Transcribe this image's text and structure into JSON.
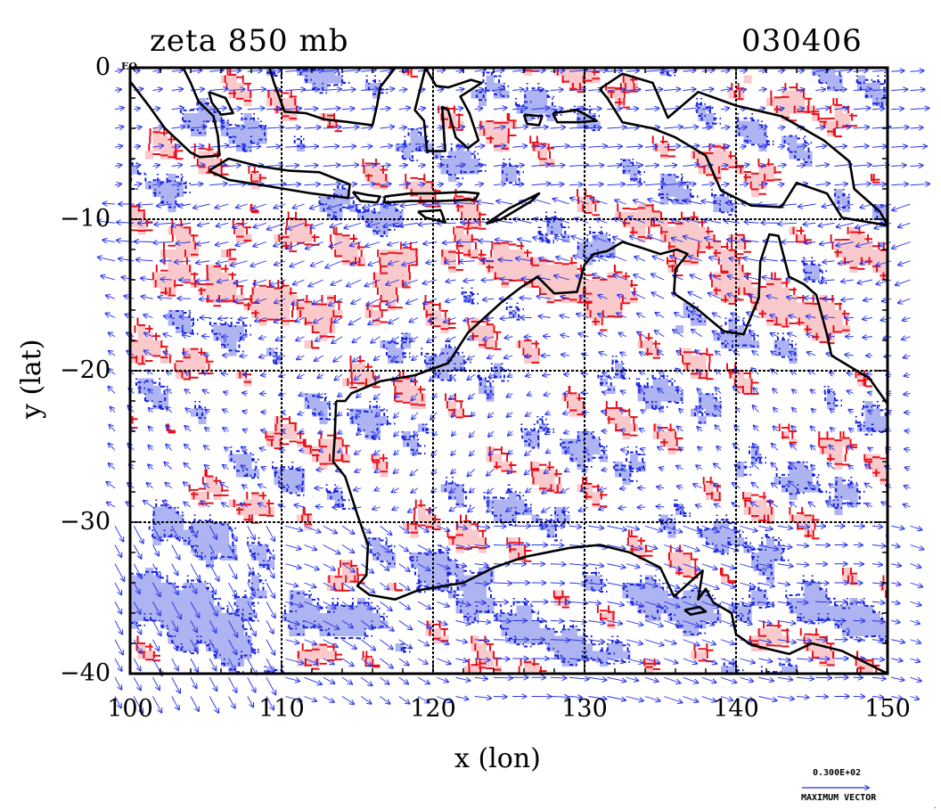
{
  "title": {
    "left": "zeta 850 mb",
    "right": "030406"
  },
  "axes": {
    "xlabel": "x (lon)",
    "ylabel": "y (lat)",
    "xticks": [
      "100",
      "110",
      "120",
      "130",
      "140",
      "150"
    ],
    "yticks": [
      "0",
      "−10",
      "−20",
      "−30",
      "−40"
    ],
    "xlim": [
      100,
      150
    ],
    "ylim": [
      -40,
      0
    ],
    "grid": true
  },
  "equator_mark": "EQ",
  "legend": {
    "max_vector_value": "0.300E+02",
    "max_vector_label": "MAXIMUM VECTOR"
  },
  "colors": {
    "positive_contour": "#e8101a",
    "positive_fill": "#f9c9cb",
    "negative_contour": "#1420e0",
    "negative_fill": "#aeb3f2",
    "coastline": "#000000",
    "vectors": "#2430e8"
  },
  "coastlines": {
    "australia": [
      [
        113.6,
        -22
      ],
      [
        114.2,
        -22
      ],
      [
        114.6,
        -21.5
      ],
      [
        116.5,
        -20.7
      ],
      [
        118.8,
        -20.3
      ],
      [
        121,
        -19.5
      ],
      [
        122.3,
        -17.5
      ],
      [
        123.5,
        -16.4
      ],
      [
        124.5,
        -15.5
      ],
      [
        125.8,
        -14.5
      ],
      [
        126.9,
        -13.8
      ],
      [
        128,
        -14.9
      ],
      [
        129.5,
        -14.8
      ],
      [
        130,
        -13
      ],
      [
        130.6,
        -12.3
      ],
      [
        131.5,
        -12.1
      ],
      [
        132.5,
        -11.5
      ],
      [
        133.8,
        -11.9
      ],
      [
        135,
        -12.3
      ],
      [
        136.1,
        -12
      ],
      [
        136.8,
        -12.3
      ],
      [
        136,
        -13.3
      ],
      [
        135.9,
        -14.9
      ],
      [
        137.4,
        -15.9
      ],
      [
        139.2,
        -17.4
      ],
      [
        140.5,
        -17.6
      ],
      [
        141.5,
        -15.2
      ],
      [
        141.6,
        -12.8
      ],
      [
        142.2,
        -11
      ],
      [
        142.8,
        -11.1
      ],
      [
        143.5,
        -13.8
      ],
      [
        144.5,
        -14.3
      ],
      [
        145.3,
        -15
      ],
      [
        146,
        -17.6
      ],
      [
        146.3,
        -19
      ],
      [
        148.8,
        -20.5
      ],
      [
        150,
        -22.2
      ],
      [
        150,
        -40
      ],
      [
        147,
        -38.5
      ],
      [
        145,
        -38
      ],
      [
        143.5,
        -38.7
      ],
      [
        141,
        -38.1
      ],
      [
        140,
        -37.4
      ],
      [
        139.7,
        -36
      ],
      [
        138.5,
        -35.3
      ],
      [
        138,
        -34.4
      ],
      [
        137.5,
        -35.1
      ],
      [
        137.8,
        -33.2
      ],
      [
        135.9,
        -34.9
      ],
      [
        135,
        -33
      ],
      [
        133,
        -32
      ],
      [
        131,
        -31.5
      ],
      [
        129,
        -31.7
      ],
      [
        126,
        -32.3
      ],
      [
        124,
        -33
      ],
      [
        122,
        -34
      ],
      [
        119,
        -34.5
      ],
      [
        117.5,
        -35.1
      ],
      [
        115.8,
        -34.8
      ],
      [
        115,
        -34.2
      ],
      [
        115.6,
        -33.5
      ],
      [
        115.7,
        -31.5
      ],
      [
        115,
        -29.5
      ],
      [
        114.2,
        -27
      ],
      [
        113.4,
        -26
      ],
      [
        113.5,
        -24.5
      ],
      [
        113.6,
        -22
      ]
    ],
    "java": [
      [
        105.2,
        -6.8
      ],
      [
        106.5,
        -6
      ],
      [
        108.5,
        -6.5
      ],
      [
        110.5,
        -6.8
      ],
      [
        112.5,
        -6.9
      ],
      [
        114.5,
        -7.7
      ],
      [
        114.4,
        -8.6
      ],
      [
        112,
        -8.3
      ],
      [
        109,
        -7.8
      ],
      [
        106.5,
        -7.4
      ],
      [
        105.2,
        -6.8
      ]
    ],
    "bali_lombok": [
      [
        114.7,
        -8.2
      ],
      [
        115.7,
        -8.4
      ],
      [
        116.5,
        -8.5
      ],
      [
        116.3,
        -8.9
      ],
      [
        115.2,
        -8.8
      ],
      [
        114.7,
        -8.2
      ]
    ],
    "sumbawa_flores": [
      [
        116.8,
        -8.5
      ],
      [
        118.5,
        -8.3
      ],
      [
        120,
        -8.3
      ],
      [
        122,
        -8.2
      ],
      [
        123,
        -8.3
      ],
      [
        122.8,
        -8.7
      ],
      [
        120.5,
        -8.8
      ],
      [
        118.5,
        -8.8
      ],
      [
        116.8,
        -8.9
      ],
      [
        116.8,
        -8.5
      ]
    ],
    "sumba": [
      [
        119,
        -9.5
      ],
      [
        120.5,
        -9.4
      ],
      [
        120.8,
        -10.2
      ],
      [
        119.5,
        -9.9
      ],
      [
        119,
        -9.5
      ]
    ],
    "timor": [
      [
        123.5,
        -10.3
      ],
      [
        125,
        -9.3
      ],
      [
        127,
        -8.3
      ],
      [
        126.5,
        -8.8
      ],
      [
        124.5,
        -10
      ],
      [
        123.5,
        -10.3
      ]
    ],
    "new_guinea": [
      [
        131,
        -1.4
      ],
      [
        132.5,
        -0.4
      ],
      [
        134.5,
        -1
      ],
      [
        135.5,
        -3.3
      ],
      [
        137.5,
        -1.6
      ],
      [
        140,
        -2.5
      ],
      [
        143,
        -3.2
      ],
      [
        145.8,
        -4.8
      ],
      [
        147.5,
        -6.2
      ],
      [
        147.8,
        -8
      ],
      [
        149.5,
        -9.5
      ],
      [
        150,
        -10.4
      ],
      [
        147,
        -9.9
      ],
      [
        146,
        -8.3
      ],
      [
        144,
        -7.6
      ],
      [
        143,
        -9.2
      ],
      [
        141,
        -9.1
      ],
      [
        139,
        -8.1
      ],
      [
        138,
        -5.8
      ],
      [
        136,
        -4.6
      ],
      [
        134.5,
        -4
      ],
      [
        132.5,
        -3.6
      ],
      [
        131.5,
        -2
      ],
      [
        131,
        -1.4
      ]
    ],
    "tasmania": [
      [
        144.6,
        -40
      ],
      [
        146,
        -40
      ],
      [
        148.3,
        -40
      ],
      [
        148.3,
        -40
      ]
    ],
    "sulawesi": [
      [
        119.5,
        0
      ],
      [
        120.2,
        -1.2
      ],
      [
        121,
        -1.3
      ],
      [
        122.5,
        -0.8
      ],
      [
        123.2,
        -1
      ],
      [
        121.8,
        -1.9
      ],
      [
        122.4,
        -3
      ],
      [
        123,
        -4.8
      ],
      [
        122.3,
        -5.3
      ],
      [
        121.5,
        -4.6
      ],
      [
        121,
        -2.8
      ],
      [
        120.6,
        -2.6
      ],
      [
        120.8,
        -5.5
      ],
      [
        119.6,
        -5.5
      ],
      [
        119.4,
        -3.5
      ],
      [
        118.8,
        -2.8
      ],
      [
        119.5,
        0
      ]
    ],
    "sulawesi_ne": [
      [
        120.2,
        0
      ],
      [
        122,
        0
      ],
      [
        124,
        0
      ],
      [
        124.9,
        0.5
      ],
      [
        123.5,
        0.2
      ],
      [
        121.5,
        0.1
      ],
      [
        120.2,
        0
      ]
    ],
    "borneo": [
      [
        109.2,
        0
      ],
      [
        109.5,
        -1
      ],
      [
        110.2,
        -2.9
      ],
      [
        111.6,
        -3
      ],
      [
        112.8,
        -3.4
      ],
      [
        114.5,
        -3.6
      ],
      [
        116,
        -3.8
      ],
      [
        116.3,
        -2.5
      ],
      [
        116.5,
        -1.3
      ],
      [
        117.5,
        0
      ],
      [
        109.2,
        0
      ]
    ],
    "sumatra": [
      [
        100,
        -0.9
      ],
      [
        101.3,
        -2.6
      ],
      [
        102.3,
        -4
      ],
      [
        104,
        -5.6
      ],
      [
        104.6,
        -5.9
      ],
      [
        105.9,
        -5.8
      ],
      [
        105.8,
        -4.5
      ],
      [
        105.5,
        -3.2
      ],
      [
        104.5,
        -2.2
      ],
      [
        104,
        -1
      ],
      [
        103.5,
        0
      ],
      [
        100,
        0
      ]
    ],
    "bangka": [
      [
        105.2,
        -1.6
      ],
      [
        106.3,
        -2
      ],
      [
        106.8,
        -3
      ],
      [
        106,
        -3.1
      ],
      [
        105.4,
        -2.3
      ],
      [
        105.2,
        -1.6
      ]
    ],
    "halmahera_seram": [
      [
        127.9,
        -3
      ],
      [
        129.5,
        -2.8
      ],
      [
        130.8,
        -3.5
      ],
      [
        129.6,
        -3.6
      ],
      [
        128.2,
        -3.6
      ],
      [
        127.9,
        -3
      ]
    ],
    "buru": [
      [
        126,
        -3.1
      ],
      [
        127.2,
        -3.2
      ],
      [
        127,
        -3.8
      ],
      [
        126.2,
        -3.7
      ],
      [
        126,
        -3.1
      ]
    ],
    "kangaroo": [
      [
        136.6,
        -35.8
      ],
      [
        137.6,
        -35.6
      ],
      [
        138,
        -35.9
      ],
      [
        137,
        -36.1
      ],
      [
        136.6,
        -35.8
      ]
    ]
  }
}
